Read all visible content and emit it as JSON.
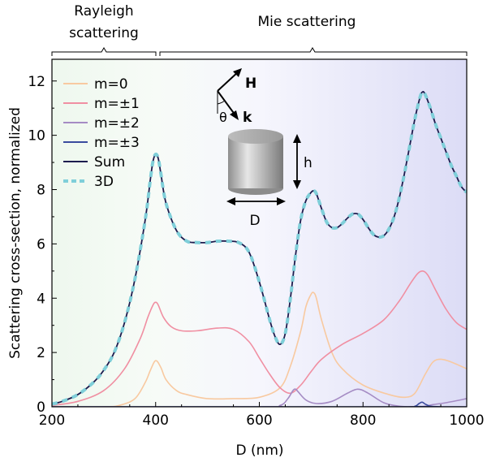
{
  "chart_data": {
    "type": "line",
    "xlabel": "D (nm)",
    "ylabel": "Scattering cross-section, normalized",
    "xlim": [
      200,
      1000
    ],
    "ylim": [
      0,
      12.8
    ],
    "xticks": [
      "200",
      "400",
      "600",
      "800",
      "1000"
    ],
    "yticks": [
      "0",
      "2",
      "4",
      "6",
      "8",
      "10",
      "12"
    ],
    "regions": [
      {
        "label_line1": "Rayleigh",
        "label_line2": "scattering",
        "x_start": 200,
        "x_end": 400,
        "color": "#e6f5e6"
      },
      {
        "label_line1": "Mie scattering",
        "label_line2": "",
        "x_start": 400,
        "x_end": 1000,
        "color": "#e6e6f8"
      }
    ],
    "inset": {
      "H_label": "H",
      "k_label": "k",
      "theta_label": "θ",
      "h_label": "h",
      "D_label": "D"
    },
    "series": [
      {
        "name": "m=0",
        "color": "#f8c9a0",
        "width": 1.6,
        "dash": "",
        "x": [
          200,
          300,
          330,
          360,
          380,
          390,
          400,
          410,
          420,
          440,
          460,
          500,
          550,
          600,
          640,
          660,
          680,
          690,
          700,
          705,
          710,
          720,
          740,
          760,
          800,
          850,
          880,
          900,
          920,
          935,
          950,
          970,
          1000
        ],
        "y": [
          0,
          0,
          0.05,
          0.3,
          0.9,
          1.35,
          1.7,
          1.45,
          1.0,
          0.6,
          0.45,
          0.3,
          0.3,
          0.35,
          0.7,
          1.5,
          2.8,
          3.7,
          4.15,
          4.2,
          4.0,
          3.2,
          2.0,
          1.4,
          0.8,
          0.45,
          0.35,
          0.5,
          1.2,
          1.65,
          1.75,
          1.65,
          1.4
        ]
      },
      {
        "name": "m=±1",
        "color": "#f08fa2",
        "width": 1.6,
        "dash": "",
        "x": [
          200,
          250,
          300,
          340,
          370,
          385,
          395,
          400,
          405,
          415,
          430,
          450,
          480,
          520,
          550,
          580,
          600,
          620,
          640,
          660,
          680,
          700,
          720,
          760,
          800,
          840,
          870,
          890,
          905,
          915,
          925,
          940,
          960,
          980,
          1000
        ],
        "y": [
          0.05,
          0.2,
          0.6,
          1.4,
          2.5,
          3.3,
          3.75,
          3.85,
          3.75,
          3.3,
          2.95,
          2.8,
          2.8,
          2.9,
          2.85,
          2.4,
          1.8,
          1.2,
          0.7,
          0.5,
          0.8,
          1.3,
          1.75,
          2.3,
          2.7,
          3.2,
          3.9,
          4.5,
          4.9,
          5.0,
          4.85,
          4.3,
          3.6,
          3.1,
          2.85
        ]
      },
      {
        "name": "m=±2",
        "color": "#a58cc4",
        "width": 1.6,
        "dash": "",
        "x": [
          200,
          600,
          640,
          655,
          665,
          670,
          675,
          690,
          710,
          740,
          770,
          790,
          810,
          840,
          870,
          900,
          910,
          920,
          935,
          960,
          1000
        ],
        "y": [
          0,
          0,
          0.05,
          0.3,
          0.6,
          0.65,
          0.55,
          0.25,
          0.12,
          0.2,
          0.5,
          0.65,
          0.5,
          0.15,
          0.02,
          0,
          0,
          0.02,
          0.08,
          0.15,
          0.3
        ]
      },
      {
        "name": "m=±3",
        "color": "#3a4b9e",
        "width": 1.6,
        "dash": "",
        "x": [
          200,
          880,
          900,
          908,
          914,
          920,
          930,
          950,
          1000
        ],
        "y": [
          0,
          0,
          0.02,
          0.12,
          0.17,
          0.1,
          0.02,
          0,
          0
        ]
      },
      {
        "name": "Sum",
        "color": "#1c1c4e",
        "width": 1.8,
        "dash": "",
        "x": [
          200,
          220,
          250,
          280,
          300,
          320,
          340,
          360,
          380,
          390,
          395,
          400,
          405,
          410,
          420,
          440,
          460,
          480,
          500,
          520,
          540,
          560,
          580,
          600,
          620,
          630,
          640,
          650,
          660,
          670,
          680,
          690,
          700,
          705,
          710,
          720,
          730,
          740,
          750,
          760,
          770,
          780,
          790,
          800,
          810,
          820,
          830,
          840,
          850,
          860,
          870,
          880,
          890,
          900,
          910,
          915,
          920,
          930,
          940,
          950,
          960,
          970,
          980,
          990,
          1000
        ],
        "y": [
          0.1,
          0.2,
          0.45,
          0.9,
          1.35,
          2.0,
          3.1,
          4.7,
          6.9,
          8.4,
          9.05,
          9.3,
          9.15,
          8.6,
          7.5,
          6.5,
          6.1,
          6.05,
          6.05,
          6.1,
          6.1,
          6.05,
          5.7,
          4.6,
          3.2,
          2.6,
          2.3,
          2.7,
          4.0,
          5.6,
          6.9,
          7.6,
          7.9,
          7.95,
          7.85,
          7.3,
          6.8,
          6.6,
          6.6,
          6.75,
          6.95,
          7.1,
          7.1,
          6.9,
          6.6,
          6.35,
          6.25,
          6.3,
          6.55,
          7.0,
          7.7,
          8.6,
          9.6,
          10.6,
          11.4,
          11.6,
          11.5,
          11.0,
          10.4,
          9.9,
          9.4,
          8.9,
          8.5,
          8.1,
          7.9
        ]
      },
      {
        "name": "3D",
        "color": "#7fcfd9",
        "width": 4,
        "dash": "7 6",
        "x": [
          200,
          220,
          250,
          280,
          300,
          320,
          340,
          360,
          380,
          390,
          395,
          400,
          405,
          410,
          420,
          440,
          460,
          480,
          500,
          520,
          540,
          560,
          580,
          600,
          620,
          630,
          640,
          650,
          660,
          670,
          680,
          690,
          700,
          705,
          710,
          720,
          730,
          740,
          750,
          760,
          770,
          780,
          790,
          800,
          810,
          820,
          830,
          840,
          850,
          860,
          870,
          880,
          890,
          900,
          910,
          915,
          920,
          930,
          940,
          950,
          960,
          970,
          980,
          990,
          1000
        ],
        "y": [
          0.1,
          0.2,
          0.45,
          0.9,
          1.35,
          2.0,
          3.1,
          4.7,
          6.9,
          8.4,
          9.05,
          9.3,
          9.15,
          8.6,
          7.5,
          6.5,
          6.1,
          6.05,
          6.05,
          6.1,
          6.1,
          6.05,
          5.7,
          4.6,
          3.2,
          2.6,
          2.3,
          2.7,
          4.0,
          5.6,
          6.9,
          7.6,
          7.9,
          7.95,
          7.85,
          7.3,
          6.8,
          6.6,
          6.6,
          6.75,
          6.95,
          7.1,
          7.1,
          6.9,
          6.6,
          6.35,
          6.25,
          6.3,
          6.55,
          7.0,
          7.7,
          8.6,
          9.6,
          10.6,
          11.4,
          11.6,
          11.5,
          11.0,
          10.4,
          9.9,
          9.4,
          8.9,
          8.5,
          8.1,
          7.9
        ]
      }
    ]
  }
}
